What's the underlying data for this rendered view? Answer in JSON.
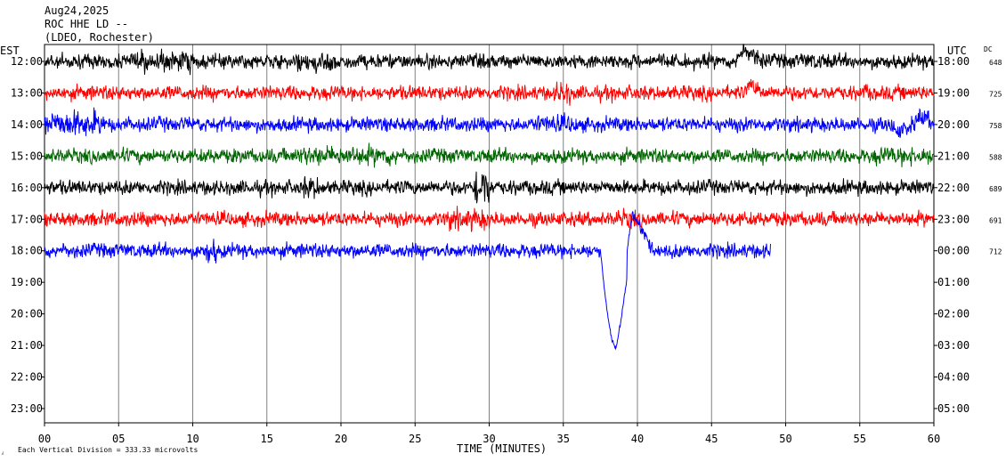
{
  "header": {
    "date": "Aug24,2025",
    "station": "ROC HHE LD --",
    "network": "(LDEO, Rochester)"
  },
  "chart_data": {
    "type": "line",
    "title": "Aug24,2025",
    "left_axis_label": "EST",
    "right_axis_label": "UTC",
    "dc_label": "DC",
    "xlabel": "TIME (MINUTES)",
    "xlim": [
      0,
      60
    ],
    "x_ticks": [
      "00",
      "05",
      "10",
      "15",
      "20",
      "25",
      "30",
      "35",
      "40",
      "45",
      "50",
      "55",
      "60"
    ],
    "est_hours": [
      "12:00",
      "13:00",
      "14:00",
      "15:00",
      "16:00",
      "17:00",
      "18:00",
      "19:00",
      "20:00",
      "21:00",
      "22:00",
      "23:00"
    ],
    "utc_hours": [
      "18:00",
      "19:00",
      "20:00",
      "21:00",
      "22:00",
      "23:00",
      "00:00",
      "01:00",
      "02:00",
      "03:00",
      "04:00",
      "05:00"
    ],
    "grid": true,
    "footnote": "Each Vertical Division =  333.33 microvolts",
    "traces": [
      {
        "est": "12:00",
        "color": "#000000",
        "dc": "648",
        "end_minute": 60
      },
      {
        "est": "13:00",
        "color": "#ff0000",
        "dc": "725",
        "end_minute": 60
      },
      {
        "est": "14:00",
        "color": "#0000ff",
        "dc": "758",
        "end_minute": 60
      },
      {
        "est": "15:00",
        "color": "#006400",
        "dc": "588",
        "end_minute": 60
      },
      {
        "est": "16:00",
        "color": "#000000",
        "dc": "689",
        "end_minute": 60
      },
      {
        "est": "17:00",
        "color": "#ff0000",
        "dc": "691",
        "end_minute": 60
      },
      {
        "est": "18:00",
        "color": "#0000ff",
        "dc": "712",
        "end_minute": 49
      }
    ]
  }
}
